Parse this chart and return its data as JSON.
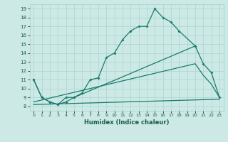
{
  "xlabel": "Humidex (Indice chaleur)",
  "bg_color": "#cce9e5",
  "grid_color": "#aad4cf",
  "line_color": "#1a7a6e",
  "xlim": [
    -0.5,
    23.5
  ],
  "ylim": [
    7.5,
    19.5
  ],
  "yticks": [
    8,
    9,
    10,
    11,
    12,
    13,
    14,
    15,
    16,
    17,
    18,
    19
  ],
  "xticks": [
    0,
    1,
    2,
    3,
    4,
    5,
    6,
    7,
    8,
    9,
    10,
    11,
    12,
    13,
    14,
    15,
    16,
    17,
    18,
    19,
    20,
    21,
    22,
    23
  ],
  "series": [
    {
      "x": [
        0,
        1,
        2,
        3,
        4,
        5,
        6,
        7,
        8,
        9,
        10,
        11,
        12,
        13,
        14,
        15,
        16,
        17,
        18,
        20
      ],
      "y": [
        11,
        9,
        8.5,
        8.2,
        8.5,
        9.0,
        9.5,
        11.0,
        11.2,
        13.5,
        14.0,
        15.5,
        16.5,
        17.0,
        17.0,
        19.0,
        18.0,
        17.5,
        16.5,
        14.8
      ],
      "markers": true
    },
    {
      "x": [
        0,
        1,
        2,
        3,
        4,
        5,
        20,
        21,
        22,
        23
      ],
      "y": [
        11,
        9,
        8.5,
        8.2,
        9.0,
        9.0,
        14.8,
        12.8,
        11.8,
        9.0
      ],
      "markers": true
    },
    {
      "x": [
        0,
        20,
        21,
        22,
        23
      ],
      "y": [
        8.5,
        12.8,
        11.5,
        10.5,
        9.0
      ],
      "markers": false
    },
    {
      "x": [
        0,
        23
      ],
      "y": [
        8.2,
        8.8
      ],
      "markers": false
    }
  ]
}
